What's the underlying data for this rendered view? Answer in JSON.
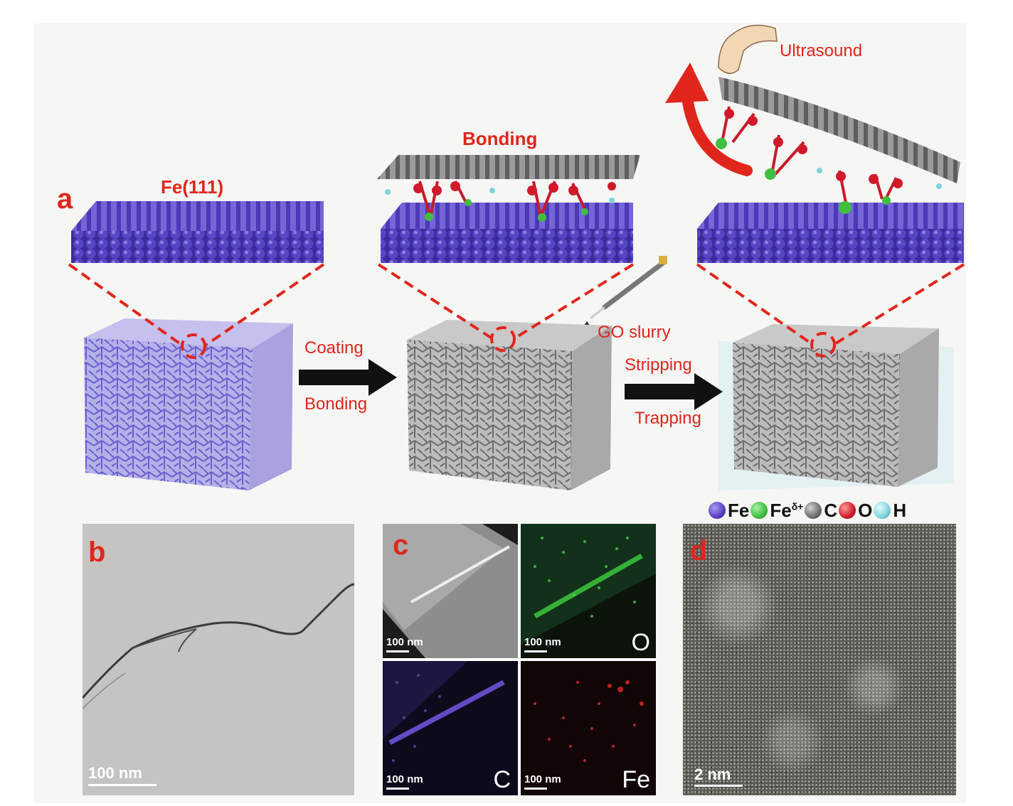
{
  "panel_a": {
    "letter": "a",
    "label_fe111": "Fe(111)",
    "label_bonding_top": "Bonding",
    "label_ultrasound": "Ultrasound",
    "label_go_slurry": "GO slurry",
    "arrow1_top": "Coating",
    "arrow1_bottom": "Bonding",
    "arrow2_top": "Stripping",
    "arrow2_bottom": "Trapping"
  },
  "legend": [
    {
      "symbol": "Fe",
      "sup": "",
      "color": "#5b3fc0"
    },
    {
      "symbol": "Fe",
      "sup": "δ+",
      "color": "#3fbf3f"
    },
    {
      "symbol": "C",
      "sup": "",
      "color": "#6e6e6e"
    },
    {
      "symbol": "O",
      "sup": "",
      "color": "#d01a2a"
    },
    {
      "symbol": "H",
      "sup": "",
      "color": "#7fd4dc"
    }
  ],
  "panel_b": {
    "letter": "b",
    "scale": "100 nm"
  },
  "panel_c": {
    "letter": "c",
    "tiles": [
      {
        "scale": "100 nm",
        "element": ""
      },
      {
        "scale": "100 nm",
        "element": "O"
      },
      {
        "scale": "100 nm",
        "element": "C"
      },
      {
        "scale": "100 nm",
        "element": "Fe"
      }
    ]
  },
  "panel_d": {
    "letter": "d",
    "scale": "2 nm"
  },
  "colors": {
    "accent_red": "#e0261c",
    "fe_blue": "#4a3ab8",
    "graphene_gray": "#6f6f6f"
  }
}
